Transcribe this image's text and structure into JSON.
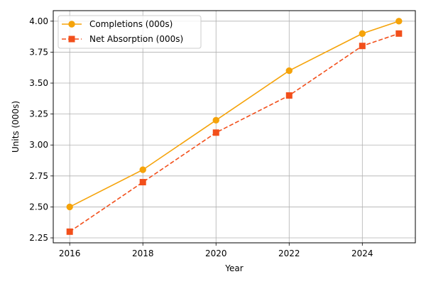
{
  "chart_data": {
    "type": "line",
    "title": "",
    "xlabel": "Year",
    "ylabel": "Units (000s)",
    "x": [
      2016,
      2018,
      2020,
      2022,
      2024,
      2025
    ],
    "xlim": [
      2015.55,
      2025.45
    ],
    "ylim": [
      2.21,
      4.085
    ],
    "xticks": [
      "2016",
      "2018",
      "2020",
      "2022",
      "2024"
    ],
    "yticks": [
      "2.25",
      "2.50",
      "2.75",
      "3.00",
      "3.25",
      "3.50",
      "3.75",
      "4.00"
    ],
    "grid": true,
    "legend_position": "top-left",
    "series": [
      {
        "name": "Completions (000s)",
        "values": [
          2.5,
          2.8,
          3.2,
          3.6,
          3.9,
          4.0
        ],
        "color": "#f5a30a",
        "line_style": "solid",
        "marker": "circle"
      },
      {
        "name": "Net Absorption (000s)",
        "values": [
          2.3,
          2.7,
          3.1,
          3.4,
          3.8,
          3.9
        ],
        "color": "#f24f1b",
        "line_style": "dashed",
        "marker": "square"
      }
    ]
  }
}
